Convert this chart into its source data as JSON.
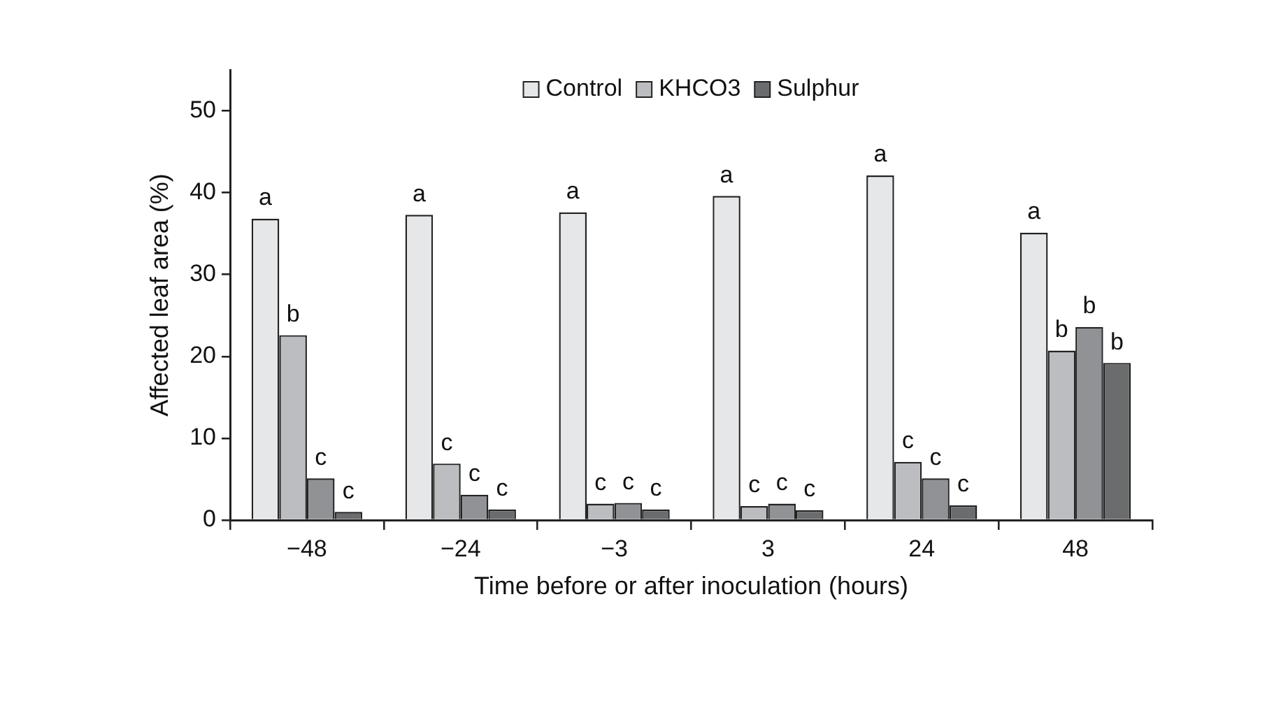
{
  "chart_data": {
    "type": "bar",
    "xlabel": "Time before or after inoculation (hours)",
    "ylabel": "Affected leaf area (%)",
    "categories": [
      "−48",
      "−24",
      "−3",
      "3",
      "24",
      "48"
    ],
    "series": [
      {
        "name": "Control",
        "color": "#e6e7e9",
        "values": [
          36.8,
          37.3,
          37.6,
          39.6,
          42.1,
          35.1
        ],
        "value_labels": [
          "a",
          "a",
          "a",
          "a",
          "a",
          "a"
        ]
      },
      {
        "name": "KHCO3",
        "color": "#bcbdc0",
        "values": [
          22.6,
          6.9,
          2.0,
          1.7,
          7.1,
          20.7
        ],
        "value_labels": [
          "b",
          "c",
          "c",
          "c",
          "c",
          "b"
        ]
      },
      {
        "color": "#909295",
        "values": [
          5.1,
          3.1,
          2.1,
          2.0,
          5.1,
          23.6
        ],
        "value_labels": [
          "c",
          "c",
          "c",
          "c",
          "c",
          "b"
        ]
      },
      {
        "name": "Sulphur",
        "color": "#6b6c6e",
        "values": [
          1.0,
          1.3,
          1.3,
          1.2,
          1.8,
          19.2
        ],
        "value_labels": [
          "c",
          "c",
          "c",
          "c",
          "c",
          "b"
        ]
      }
    ],
    "ylim": [
      0,
      55
    ],
    "yticks": [
      0,
      10,
      20,
      30,
      40,
      50
    ],
    "grid": false,
    "legend": "top"
  }
}
